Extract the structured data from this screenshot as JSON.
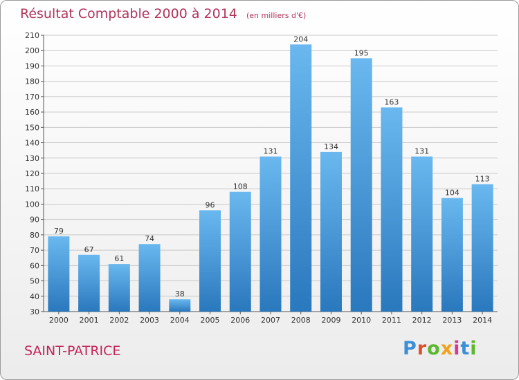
{
  "title": "Résultat Comptable 2000 à 2014",
  "unit": "(en milliers d'€)",
  "commune": "SAINT-PATRICE",
  "logo": {
    "text": "Proxiti",
    "colors": [
      "#3a8fd6",
      "#e0502e",
      "#5cb82e",
      "#f2a21a",
      "#d9388e",
      "#3a8fd6",
      "#5cb82e"
    ]
  },
  "colors": {
    "bar_top": "#6ab8ef",
    "bar_bottom": "#2a78bd",
    "title": "#b0345a",
    "grid": "#c8c8c8"
  },
  "chart_data": {
    "type": "bar",
    "title": "Résultat Comptable 2000 à 2014",
    "categories": [
      "2000",
      "2001",
      "2002",
      "2003",
      "2004",
      "2005",
      "2006",
      "2007",
      "2008",
      "2009",
      "2010",
      "2011",
      "2012",
      "2013",
      "2014"
    ],
    "values": [
      79,
      67,
      61,
      74,
      38,
      96,
      108,
      131,
      204,
      134,
      195,
      163,
      131,
      104,
      113
    ],
    "ylim": [
      30,
      210
    ],
    "yticks": [
      30,
      40,
      50,
      60,
      70,
      80,
      90,
      100,
      110,
      120,
      130,
      140,
      150,
      160,
      170,
      180,
      190,
      200,
      210
    ],
    "grid": true,
    "data_labels": true
  }
}
